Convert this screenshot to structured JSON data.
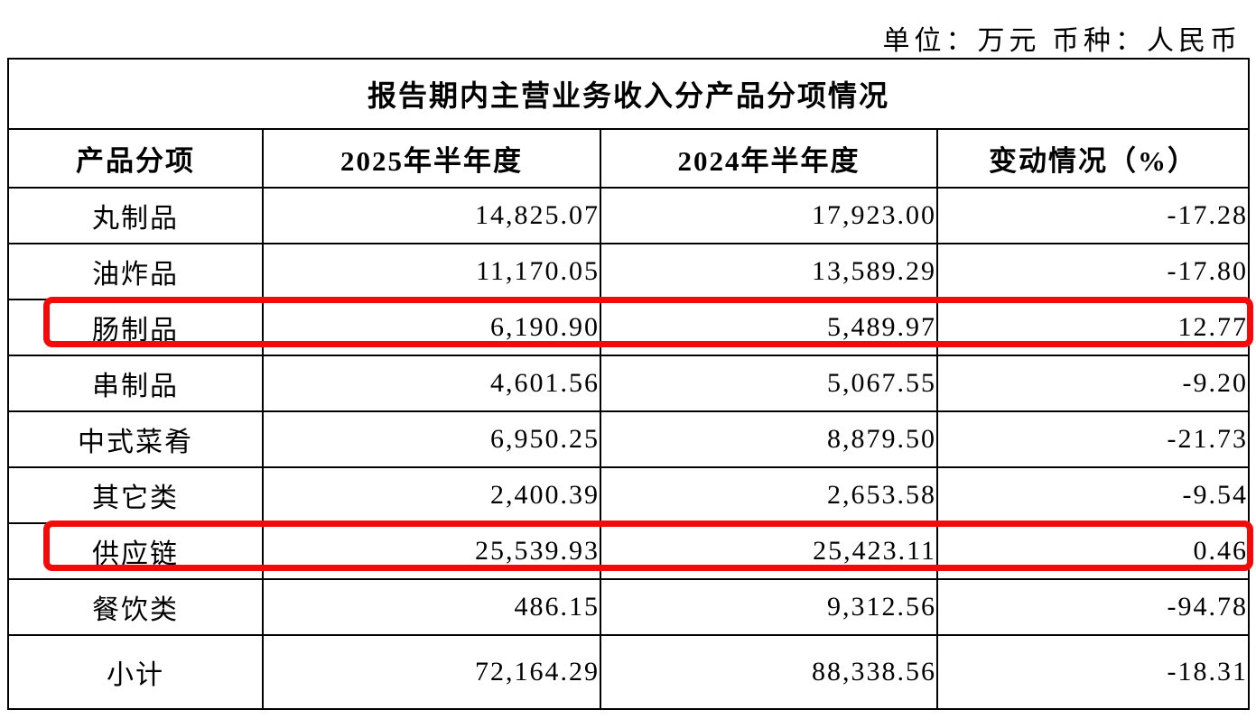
{
  "page": {
    "unit_note": "单位：万元 币种：人民币"
  },
  "table": {
    "title": "报告期内主营业务收入分产品分项情况",
    "columns": [
      "产品分项",
      "2025年半年度",
      "2024年半年度",
      "变动情况（%）"
    ],
    "rows": [
      {
        "product": "丸制品",
        "h1_2025": "14,825.07",
        "h1_2024": "17,923.00",
        "change_pct": "-17.28",
        "highlighted": false
      },
      {
        "product": "油炸品",
        "h1_2025": "11,170.05",
        "h1_2024": "13,589.29",
        "change_pct": "-17.80",
        "highlighted": false
      },
      {
        "product": "肠制品",
        "h1_2025": "6,190.90",
        "h1_2024": "5,489.97",
        "change_pct": "12.77",
        "highlighted": true
      },
      {
        "product": "串制品",
        "h1_2025": "4,601.56",
        "h1_2024": "5,067.55",
        "change_pct": "-9.20",
        "highlighted": false
      },
      {
        "product": "中式菜肴",
        "h1_2025": "6,950.25",
        "h1_2024": "8,879.50",
        "change_pct": "-21.73",
        "highlighted": false
      },
      {
        "product": "其它类",
        "h1_2025": "2,400.39",
        "h1_2024": "2,653.58",
        "change_pct": "-9.54",
        "highlighted": false
      },
      {
        "product": "供应链",
        "h1_2025": "25,539.93",
        "h1_2024": "25,423.11",
        "change_pct": "0.46",
        "highlighted": true
      },
      {
        "product": "餐饮类",
        "h1_2025": "486.15",
        "h1_2024": "9,312.56",
        "change_pct": "-94.78",
        "highlighted": false
      },
      {
        "product": "小计",
        "h1_2025": "72,164.29",
        "h1_2024": "88,338.56",
        "change_pct": "-18.31",
        "highlighted": false
      }
    ]
  },
  "annotation": {
    "highlight_color": "#f30b0b"
  }
}
